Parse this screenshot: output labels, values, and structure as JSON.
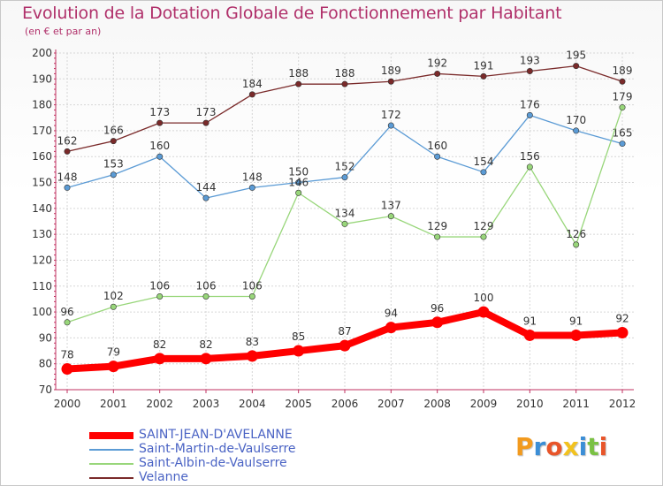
{
  "title": "Evolution de la Dotation Globale de Fonctionnement par Habitant",
  "subtitle": "(en € et par an)",
  "logo": {
    "text": "Proxiti",
    "colors": [
      "#f29a1e",
      "#3b8ed6",
      "#e8552a",
      "#f2c21e",
      "#3b8ed6",
      "#7ac143",
      "#e8552a"
    ]
  },
  "chart_data": {
    "type": "line",
    "title": "Evolution de la Dotation Globale de Fonctionnement par Habitant",
    "subtitle": "(en € et par an)",
    "xlabel": "",
    "ylabel": "",
    "ylim": [
      70,
      200
    ],
    "yticks": [
      70,
      80,
      90,
      100,
      110,
      120,
      130,
      140,
      150,
      160,
      170,
      180,
      190,
      200
    ],
    "grid": true,
    "legend_position": "bottom-left",
    "x": [
      "2000",
      "2001",
      "2002",
      "2003",
      "2004",
      "2005",
      "2006",
      "2007",
      "2008",
      "2009",
      "2010",
      "2011",
      "2012"
    ],
    "series": [
      {
        "name": "Velanne",
        "color": "#7a2a2a",
        "emphasis": false,
        "values": [
          162,
          166,
          173,
          173,
          184,
          188,
          188,
          189,
          192,
          191,
          193,
          195,
          189
        ]
      },
      {
        "name": "Saint-Martin-de-Vaulserre",
        "color": "#5b9bd5",
        "emphasis": false,
        "values": [
          148,
          153,
          160,
          144,
          148,
          150,
          152,
          172,
          160,
          154,
          176,
          170,
          165
        ]
      },
      {
        "name": "Saint-Albin-de-Vaulserre",
        "color": "#98d67a",
        "emphasis": false,
        "values": [
          96,
          102,
          106,
          106,
          106,
          146,
          134,
          137,
          129,
          129,
          156,
          126,
          179
        ]
      },
      {
        "name": "SAINT-JEAN-D'AVELANNE",
        "color": "#ff0000",
        "emphasis": true,
        "values": [
          78,
          79,
          82,
          82,
          83,
          85,
          87,
          94,
          96,
          100,
          91,
          91,
          92
        ]
      }
    ],
    "legend_order": [
      "SAINT-JEAN-D'AVELANNE",
      "Saint-Martin-de-Vaulserre",
      "Saint-Albin-de-Vaulserre",
      "Velanne"
    ]
  }
}
